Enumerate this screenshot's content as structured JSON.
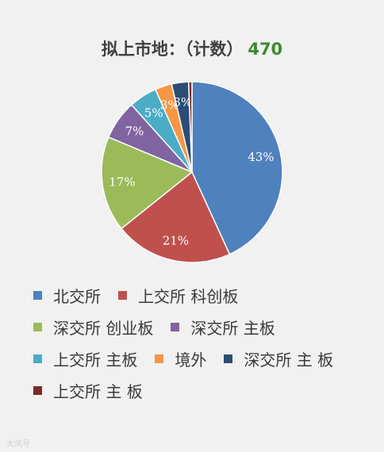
{
  "chart_data": {
    "type": "pie",
    "title": "拟上市地：（计数）",
    "total": "470",
    "series": [
      {
        "name": "北交所",
        "value": 43,
        "label": "43%",
        "color": "#4f81bd"
      },
      {
        "name": "上交所 科创板",
        "value": 21,
        "label": "21%",
        "color": "#c0504d"
      },
      {
        "name": "深交所 创业板",
        "value": 17,
        "label": "17%",
        "color": "#9bbb59"
      },
      {
        "name": "深交所 主板",
        "value": 7,
        "label": "7%",
        "color": "#8064a2"
      },
      {
        "name": "上交所 主板",
        "value": 5,
        "label": "5%",
        "color": "#4bacc6"
      },
      {
        "name": "境外",
        "value": 3,
        "label": "3%",
        "color": "#f79646"
      },
      {
        "name": "深交所 主 板",
        "value": 3,
        "label": "3%",
        "color": "#2c4d75"
      },
      {
        "name": "上交所 主 板",
        "value": 0.6,
        "label": "",
        "color": "#772c2a"
      }
    ],
    "legend_position": "bottom"
  },
  "watermark": "大风号"
}
